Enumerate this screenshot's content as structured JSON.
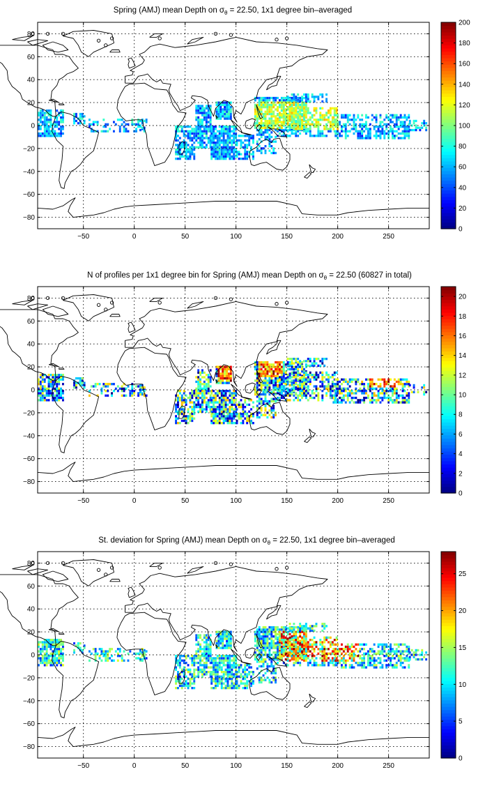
{
  "chart_data": [
    {
      "type": "heatmap",
      "title_pre": "Spring (AMJ) mean Depth on ",
      "title_sym": "σ",
      "title_sub": "θ",
      "title_post": " = 22.50, 1x1 degree bin–averaged",
      "x_ticks": [
        "−50",
        "0",
        "50",
        "100",
        "150",
        "200",
        "250"
      ],
      "x_tick_values": [
        -50,
        0,
        50,
        100,
        150,
        200,
        250
      ],
      "y_ticks": [
        "80",
        "60",
        "40",
        "20",
        "0",
        "−20",
        "−40",
        "−60",
        "−80"
      ],
      "y_tick_values": [
        80,
        60,
        40,
        20,
        0,
        -20,
        -40,
        -60,
        -80
      ],
      "xlim": [
        -95,
        290
      ],
      "ylim": [
        -90,
        90
      ],
      "grid": true,
      "colormap": "jet",
      "colorbar": {
        "range": [
          0,
          200
        ],
        "ticks": [
          "0",
          "20",
          "40",
          "60",
          "80",
          "100",
          "120",
          "140",
          "160",
          "180",
          "200"
        ],
        "tick_values": [
          0,
          20,
          40,
          60,
          80,
          100,
          120,
          140,
          160,
          180,
          200
        ]
      }
    },
    {
      "type": "heatmap",
      "title_pre": "N of profiles per 1x1 degree bin for Spring (AMJ) mean Depth on ",
      "title_sym": "σ",
      "title_sub": "θ",
      "title_post": " = 22.50 (60827 in total)",
      "x_ticks": [
        "−50",
        "0",
        "50",
        "100",
        "150",
        "200",
        "250"
      ],
      "x_tick_values": [
        -50,
        0,
        50,
        100,
        150,
        200,
        250
      ],
      "y_ticks": [
        "80",
        "60",
        "40",
        "20",
        "0",
        "−20",
        "−40",
        "−60",
        "−80"
      ],
      "y_tick_values": [
        80,
        60,
        40,
        20,
        0,
        -20,
        -40,
        -60,
        -80
      ],
      "xlim": [
        -95,
        290
      ],
      "ylim": [
        -90,
        90
      ],
      "grid": true,
      "colormap": "jet",
      "colorbar": {
        "range": [
          0,
          21
        ],
        "ticks": [
          "0",
          "2",
          "4",
          "6",
          "8",
          "10",
          "12",
          "14",
          "16",
          "18",
          "20"
        ],
        "tick_values": [
          0,
          2,
          4,
          6,
          8,
          10,
          12,
          14,
          16,
          18,
          20
        ]
      }
    },
    {
      "type": "heatmap",
      "title_pre": "St. deviation for Spring (AMJ) mean Depth on ",
      "title_sym": "σ",
      "title_sub": "θ",
      "title_post": " = 22.50, 1x1 degree bin–averaged",
      "x_ticks": [
        "−50",
        "0",
        "50",
        "100",
        "150",
        "200",
        "250"
      ],
      "x_tick_values": [
        -50,
        0,
        50,
        100,
        150,
        200,
        250
      ],
      "y_ticks": [
        "80",
        "60",
        "40",
        "20",
        "0",
        "−20",
        "−40",
        "−60",
        "−80"
      ],
      "y_tick_values": [
        80,
        60,
        40,
        20,
        0,
        -20,
        -40,
        -60,
        -80
      ],
      "xlim": [
        -95,
        290
      ],
      "ylim": [
        -90,
        90
      ],
      "grid": true,
      "colormap": "jet",
      "colorbar": {
        "range": [
          0,
          28
        ],
        "ticks": [
          "0",
          "5",
          "10",
          "15",
          "20",
          "25"
        ],
        "tick_values": [
          0,
          5,
          10,
          15,
          20,
          25
        ]
      }
    }
  ]
}
